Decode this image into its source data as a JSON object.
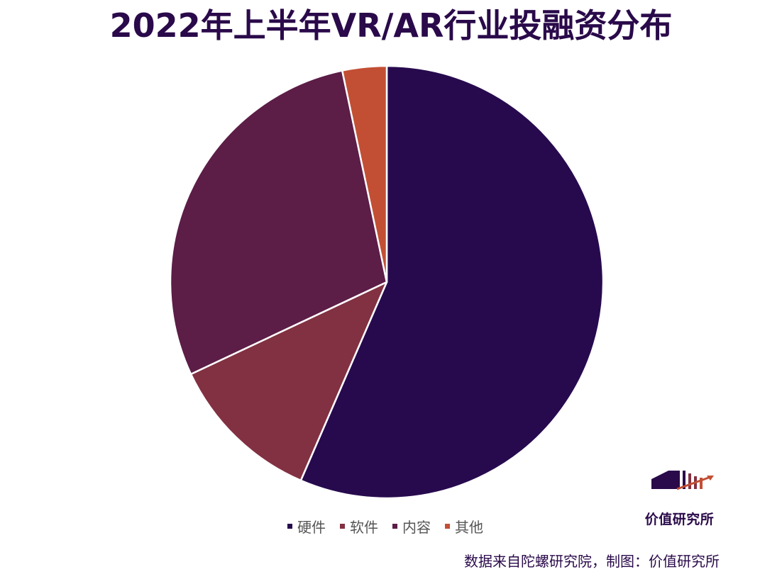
{
  "title": "2022年上半年VR/AR行业投融资分布",
  "chart_data": {
    "type": "pie",
    "start_angle_deg": 0,
    "direction": "clockwise",
    "slices": [
      {
        "label": "硬件",
        "value": 56.5,
        "color": "#270a4e"
      },
      {
        "label": "软件",
        "value": 11.5,
        "color": "#823142"
      },
      {
        "label": "内容",
        "value": 28.7,
        "color": "#5c1d47"
      },
      {
        "label": "其他",
        "value": 3.3,
        "color": "#c24f34"
      }
    ],
    "legend_position": "bottom"
  },
  "legend": [
    {
      "label": "硬件",
      "color": "#270a4e"
    },
    {
      "label": "软件",
      "color": "#823142"
    },
    {
      "label": "内容",
      "color": "#5c1d47"
    },
    {
      "label": "其他",
      "color": "#c24f34"
    }
  ],
  "logo": {
    "text": "价值研究所",
    "icon": "building-chart-icon",
    "colors": {
      "block": "#2a0a4a",
      "accent": "#c24f34"
    }
  },
  "footer": {
    "source": "数据来自陀螺研究院，制图：价值研究所"
  }
}
